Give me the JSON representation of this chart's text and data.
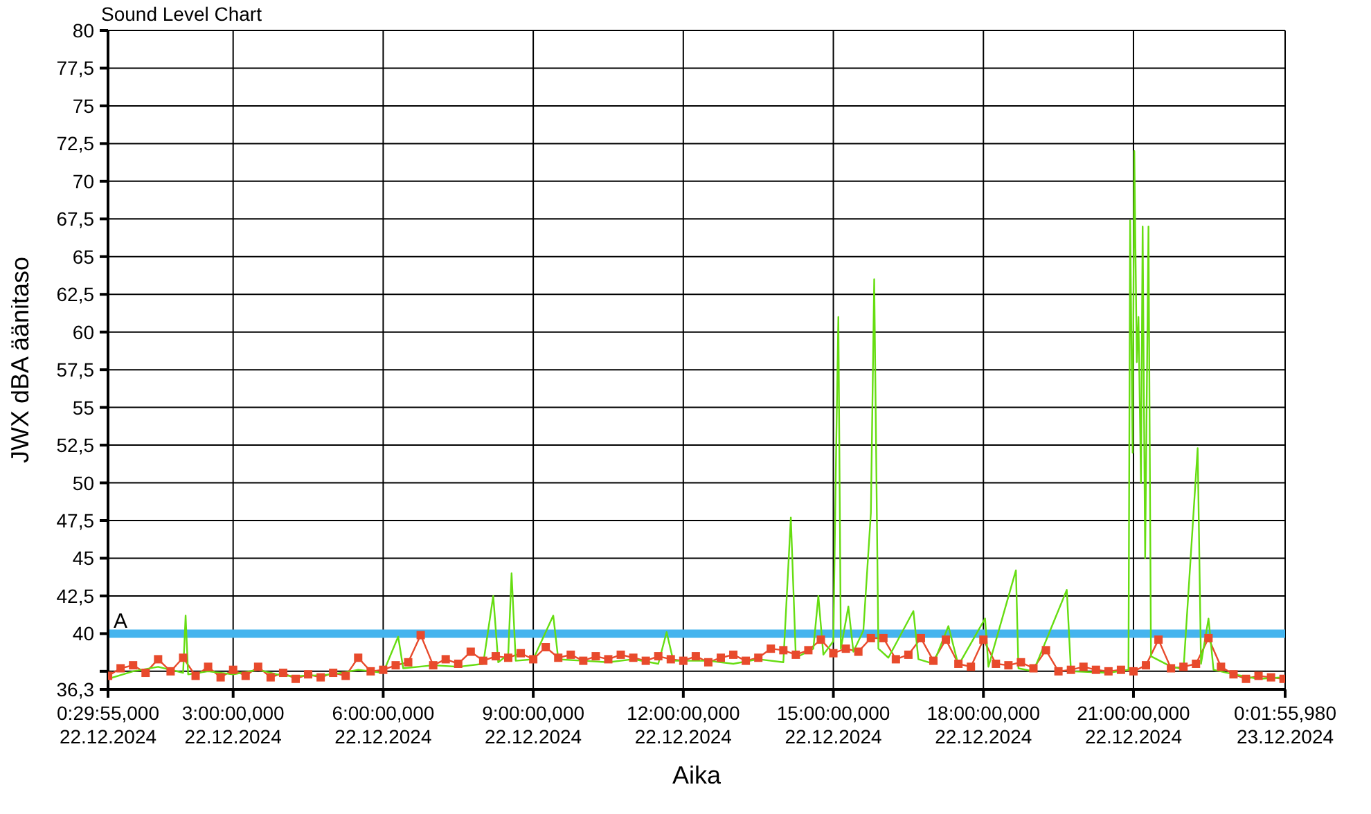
{
  "chart_data": {
    "type": "line",
    "title": "Sound Level Chart",
    "xlabel": "Aika",
    "ylabel": "JWX dBA äänitaso",
    "xlim": [
      "2024-12-22T00:29:55",
      "2024-12-23T00:01:55.980"
    ],
    "xticks": [
      {
        "value": "2024-12-22T00:29:55",
        "label": "0:29:55,000\n22.12.2024"
      },
      {
        "value": "2024-12-22T03:00",
        "label": "3:00:00,000\n22.12.2024"
      },
      {
        "value": "2024-12-22T06:00",
        "label": "6:00:00,000\n22.12.2024"
      },
      {
        "value": "2024-12-22T09:00",
        "label": "9:00:00,000\n22.12.2024"
      },
      {
        "value": "2024-12-22T12:00",
        "label": "12:00:00,000\n22.12.2024"
      },
      {
        "value": "2024-12-22T15:00",
        "label": "15:00:00,000\n22.12.2024"
      },
      {
        "value": "2024-12-22T18:00",
        "label": "18:00:00,000\n22.12.2024"
      },
      {
        "value": "2024-12-22T21:00",
        "label": "21:00:00,000\n22.12.2024"
      },
      {
        "value": "2024-12-23T00:01:55.980",
        "label": "0:01:55,980\n23.12.2024"
      }
    ],
    "ylim": [
      36.3,
      80
    ],
    "yticks": [
      {
        "value": 36.3,
        "label": "36,3"
      },
      {
        "value": 37.5,
        "label": null
      },
      40,
      {
        "value": 42.5,
        "label": "42,5"
      },
      45,
      {
        "value": 47.5,
        "label": "47,5"
      },
      50,
      {
        "value": 52.5,
        "label": "52,5"
      },
      55,
      {
        "value": 57.5,
        "label": "57,5"
      },
      60,
      {
        "value": 62.5,
        "label": "62,5"
      },
      65,
      {
        "value": 67.5,
        "label": "67,5"
      },
      70,
      {
        "value": 72.5,
        "label": "72,5"
      },
      75,
      {
        "value": 77.5,
        "label": "77,5"
      },
      80
    ],
    "grid": true,
    "marker": "square",
    "line_style": "solid",
    "ref_lines": [
      {
        "axis": "y",
        "value": 40,
        "label": "A",
        "color": "#44b4ee"
      }
    ],
    "series": [
      {
        "color": "#e84a2c",
        "x": [
          "2024-12-22T00:30",
          "2024-12-22T00:45",
          "2024-12-22T01:00",
          "2024-12-22T01:15",
          "2024-12-22T01:30",
          "2024-12-22T01:45",
          "2024-12-22T02:00",
          "2024-12-22T02:15",
          "2024-12-22T02:30",
          "2024-12-22T02:45",
          "2024-12-22T03:00",
          "2024-12-22T03:15",
          "2024-12-22T03:30",
          "2024-12-22T03:45",
          "2024-12-22T04:00",
          "2024-12-22T04:15",
          "2024-12-22T04:30",
          "2024-12-22T04:45",
          "2024-12-22T05:00",
          "2024-12-22T05:15",
          "2024-12-22T05:30",
          "2024-12-22T05:45",
          "2024-12-22T06:00",
          "2024-12-22T06:15",
          "2024-12-22T06:30",
          "2024-12-22T06:45",
          "2024-12-22T07:00",
          "2024-12-22T07:15",
          "2024-12-22T07:30",
          "2024-12-22T07:45",
          "2024-12-22T08:00",
          "2024-12-22T08:15",
          "2024-12-22T08:30",
          "2024-12-22T08:45",
          "2024-12-22T09:00",
          "2024-12-22T09:15",
          "2024-12-22T09:30",
          "2024-12-22T09:45",
          "2024-12-22T10:00",
          "2024-12-22T10:15",
          "2024-12-22T10:30",
          "2024-12-22T10:45",
          "2024-12-22T11:00",
          "2024-12-22T11:15",
          "2024-12-22T11:30",
          "2024-12-22T11:45",
          "2024-12-22T12:00",
          "2024-12-22T12:15",
          "2024-12-22T12:30",
          "2024-12-22T12:45",
          "2024-12-22T13:00",
          "2024-12-22T13:15",
          "2024-12-22T13:30",
          "2024-12-22T13:45",
          "2024-12-22T14:00",
          "2024-12-22T14:15",
          "2024-12-22T14:30",
          "2024-12-22T14:45",
          "2024-12-22T15:00",
          "2024-12-22T15:15",
          "2024-12-22T15:30",
          "2024-12-22T15:45",
          "2024-12-22T16:00",
          "2024-12-22T16:15",
          "2024-12-22T16:30",
          "2024-12-22T16:45",
          "2024-12-22T17:00",
          "2024-12-22T17:15",
          "2024-12-22T17:30",
          "2024-12-22T17:45",
          "2024-12-22T18:00",
          "2024-12-22T18:15",
          "2024-12-22T18:30",
          "2024-12-22T18:45",
          "2024-12-22T19:00",
          "2024-12-22T19:15",
          "2024-12-22T19:30",
          "2024-12-22T19:45",
          "2024-12-22T20:00",
          "2024-12-22T20:15",
          "2024-12-22T20:30",
          "2024-12-22T20:45",
          "2024-12-22T21:00",
          "2024-12-22T21:15",
          "2024-12-22T21:30",
          "2024-12-22T21:45",
          "2024-12-22T22:00",
          "2024-12-22T22:15",
          "2024-12-22T22:30",
          "2024-12-22T22:45",
          "2024-12-22T23:00",
          "2024-12-22T23:15",
          "2024-12-22T23:30",
          "2024-12-22T23:45",
          "2024-12-23T00:00"
        ],
        "values": [
          37.2,
          37.7,
          37.9,
          37.4,
          38.3,
          37.5,
          38.4,
          37.2,
          37.8,
          37.1,
          37.6,
          37.2,
          37.8,
          37.1,
          37.4,
          37.0,
          37.3,
          37.1,
          37.4,
          37.2,
          38.4,
          37.5,
          37.6,
          37.9,
          38.1,
          39.9,
          37.9,
          38.3,
          38.0,
          38.8,
          38.2,
          38.5,
          38.4,
          38.7,
          38.3,
          39.1,
          38.4,
          38.6,
          38.2,
          38.5,
          38.3,
          38.6,
          38.4,
          38.2,
          38.5,
          38.3,
          38.2,
          38.5,
          38.1,
          38.4,
          38.6,
          38.2,
          38.4,
          39.0,
          38.9,
          38.6,
          38.9,
          39.6,
          38.7,
          39.0,
          38.8,
          39.7,
          39.7,
          38.3,
          38.6,
          39.7,
          38.2,
          39.6,
          38.0,
          37.8,
          39.6,
          38.0,
          37.9,
          38.1,
          37.7,
          38.9,
          37.5,
          37.6,
          37.8,
          37.6,
          37.5,
          37.6,
          37.5,
          37.9,
          39.6,
          37.7,
          37.8,
          38.0,
          39.7,
          37.8,
          37.3,
          37.0,
          37.2,
          37.1,
          37.0
        ]
      },
      {
        "color": "#66dd11",
        "marker": "none",
        "x": [
          "2024-12-22T00:30",
          "2024-12-22T01:00",
          "2024-12-22T01:30",
          "2024-12-22T02:00",
          "2024-12-22T02:03",
          "2024-12-22T02:06",
          "2024-12-22T02:30",
          "2024-12-22T03:00",
          "2024-12-22T03:30",
          "2024-12-22T04:00",
          "2024-12-22T04:30",
          "2024-12-22T05:00",
          "2024-12-22T05:30",
          "2024-12-22T06:00",
          "2024-12-22T06:18",
          "2024-12-22T06:24",
          "2024-12-22T07:00",
          "2024-12-22T07:30",
          "2024-12-22T08:00",
          "2024-12-22T08:12",
          "2024-12-22T08:18",
          "2024-12-22T08:30",
          "2024-12-22T08:34",
          "2024-12-22T08:39",
          "2024-12-22T09:00",
          "2024-12-22T09:24",
          "2024-12-22T09:30",
          "2024-12-22T10:00",
          "2024-12-22T10:30",
          "2024-12-22T11:00",
          "2024-12-22T11:30",
          "2024-12-22T11:40",
          "2024-12-22T11:48",
          "2024-12-22T12:30",
          "2024-12-22T13:00",
          "2024-12-22T13:30",
          "2024-12-22T14:00",
          "2024-12-22T14:09",
          "2024-12-22T14:15",
          "2024-12-22T14:36",
          "2024-12-22T14:42",
          "2024-12-22T14:48",
          "2024-12-22T15:00",
          "2024-12-22T15:03",
          "2024-12-22T15:06",
          "2024-12-22T15:09",
          "2024-12-22T15:18",
          "2024-12-22T15:24",
          "2024-12-22T15:36",
          "2024-12-22T15:45",
          "2024-12-22T15:49",
          "2024-12-22T15:54",
          "2024-12-22T16:06",
          "2024-12-22T16:36",
          "2024-12-22T16:42",
          "2024-12-22T17:00",
          "2024-12-22T17:18",
          "2024-12-22T17:30",
          "2024-12-22T18:02",
          "2024-12-22T18:06",
          "2024-12-22T18:39",
          "2024-12-22T18:42",
          "2024-12-22T19:00",
          "2024-12-22T19:40",
          "2024-12-22T19:45",
          "2024-12-22T20:30",
          "2024-12-22T20:54",
          "2024-12-22T20:56",
          "2024-12-22T20:59",
          "2024-12-22T21:01",
          "2024-12-22T21:04",
          "2024-12-22T21:06",
          "2024-12-22T21:09",
          "2024-12-22T21:11",
          "2024-12-22T21:14",
          "2024-12-22T21:18",
          "2024-12-22T21:21",
          "2024-12-22T21:42",
          "2024-12-22T22:00",
          "2024-12-22T22:17",
          "2024-12-22T22:21",
          "2024-12-22T22:30",
          "2024-12-22T22:36",
          "2024-12-22T23:00",
          "2024-12-22T23:30",
          "2024-12-23T00:00"
        ],
        "values": [
          37.0,
          37.5,
          37.8,
          37.4,
          41.2,
          37.3,
          37.5,
          37.3,
          37.6,
          37.2,
          37.2,
          37.3,
          37.6,
          37.4,
          39.8,
          37.7,
          37.9,
          37.8,
          38.0,
          42.5,
          38.1,
          38.6,
          44.0,
          38.2,
          38.3,
          41.2,
          38.3,
          38.2,
          38.1,
          38.3,
          38.0,
          40.1,
          38.2,
          38.2,
          38.0,
          38.3,
          38.1,
          47.7,
          38.4,
          39.0,
          42.5,
          38.6,
          39.5,
          51.0,
          61.0,
          39.0,
          41.8,
          38.8,
          40.2,
          48.0,
          63.5,
          39.0,
          38.4,
          41.5,
          38.3,
          38.0,
          40.5,
          37.9,
          41.0,
          37.8,
          44.2,
          37.7,
          37.5,
          42.9,
          37.5,
          37.4,
          37.6,
          67.4,
          52.0,
          72.0,
          58.0,
          61.0,
          50.0,
          67.0,
          45.0,
          67.0,
          38.5,
          37.9,
          37.6,
          52.3,
          38.0,
          41.0,
          37.6,
          37.3,
          37.0,
          37.1
        ]
      }
    ]
  }
}
